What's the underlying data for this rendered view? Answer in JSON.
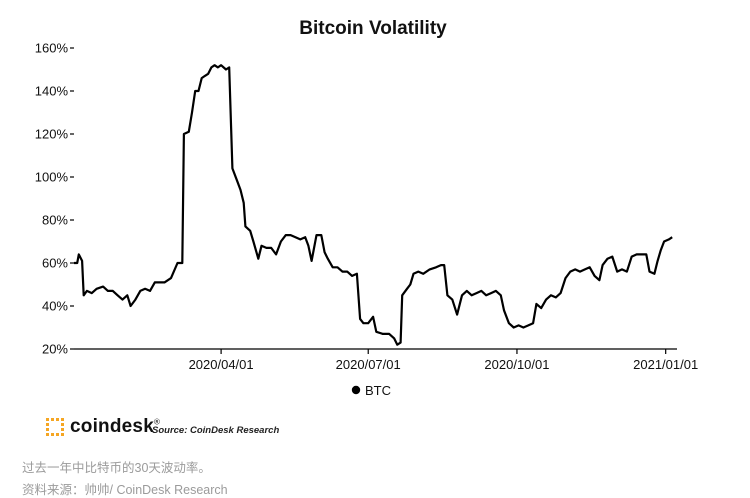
{
  "chart_data": {
    "type": "line",
    "title": "Bitcoin Volatility",
    "xlabel": "",
    "ylabel": "",
    "x_ticks": [
      "2020/04/01",
      "2020/07/01",
      "2020/10/01",
      "2021/01/01"
    ],
    "y_ticks": [
      "20%",
      "40%",
      "60%",
      "80%",
      "100%",
      "120%",
      "140%",
      "160%"
    ],
    "xlim": [
      "2020-01-01",
      "2021-01-08"
    ],
    "ylim": [
      20,
      160
    ],
    "grid": false,
    "legend": "bottom-center",
    "series": [
      {
        "name": "BTC",
        "color": "#000000",
        "points": [
          [
            "2020-01-01",
            60
          ],
          [
            "2020-01-03",
            60
          ],
          [
            "2020-01-04",
            64
          ],
          [
            "2020-01-06",
            61
          ],
          [
            "2020-01-07",
            45
          ],
          [
            "2020-01-09",
            47
          ],
          [
            "2020-01-12",
            46
          ],
          [
            "2020-01-15",
            48
          ],
          [
            "2020-01-19",
            49
          ],
          [
            "2020-01-22",
            47
          ],
          [
            "2020-01-25",
            47
          ],
          [
            "2020-01-28",
            45
          ],
          [
            "2020-01-31",
            43
          ],
          [
            "2020-02-03",
            45
          ],
          [
            "2020-02-05",
            40
          ],
          [
            "2020-02-08",
            43
          ],
          [
            "2020-02-11",
            47
          ],
          [
            "2020-02-14",
            48
          ],
          [
            "2020-02-17",
            47
          ],
          [
            "2020-02-20",
            51
          ],
          [
            "2020-02-23",
            51
          ],
          [
            "2020-02-26",
            51
          ],
          [
            "2020-03-01",
            53
          ],
          [
            "2020-03-05",
            60
          ],
          [
            "2020-03-08",
            60
          ],
          [
            "2020-03-09",
            120
          ],
          [
            "2020-03-12",
            121
          ],
          [
            "2020-03-14",
            130
          ],
          [
            "2020-03-16",
            140
          ],
          [
            "2020-03-18",
            140
          ],
          [
            "2020-03-20",
            146
          ],
          [
            "2020-03-22",
            147
          ],
          [
            "2020-03-24",
            148
          ],
          [
            "2020-03-26",
            151
          ],
          [
            "2020-03-28",
            152
          ],
          [
            "2020-03-30",
            151
          ],
          [
            "2020-04-01",
            152
          ],
          [
            "2020-04-04",
            150
          ],
          [
            "2020-04-06",
            151
          ],
          [
            "2020-04-08",
            104
          ],
          [
            "2020-04-11",
            98
          ],
          [
            "2020-04-13",
            94
          ],
          [
            "2020-04-15",
            88
          ],
          [
            "2020-04-16",
            77
          ],
          [
            "2020-04-19",
            75
          ],
          [
            "2020-04-21",
            70
          ],
          [
            "2020-04-24",
            62
          ],
          [
            "2020-04-26",
            68
          ],
          [
            "2020-04-29",
            67
          ],
          [
            "2020-05-02",
            67
          ],
          [
            "2020-05-05",
            64
          ],
          [
            "2020-05-08",
            70
          ],
          [
            "2020-05-11",
            73
          ],
          [
            "2020-05-14",
            73
          ],
          [
            "2020-05-17",
            72
          ],
          [
            "2020-05-20",
            71
          ],
          [
            "2020-05-23",
            72
          ],
          [
            "2020-05-25",
            68
          ],
          [
            "2020-05-27",
            61
          ],
          [
            "2020-05-30",
            73
          ],
          [
            "2020-06-02",
            73
          ],
          [
            "2020-06-04",
            65
          ],
          [
            "2020-06-06",
            62
          ],
          [
            "2020-06-09",
            58
          ],
          [
            "2020-06-12",
            58
          ],
          [
            "2020-06-15",
            56
          ],
          [
            "2020-06-18",
            56
          ],
          [
            "2020-06-21",
            54
          ],
          [
            "2020-06-24",
            55
          ],
          [
            "2020-06-26",
            34
          ],
          [
            "2020-06-28",
            32
          ],
          [
            "2020-07-01",
            32
          ],
          [
            "2020-07-04",
            35
          ],
          [
            "2020-07-06",
            28
          ],
          [
            "2020-07-10",
            27
          ],
          [
            "2020-07-14",
            27
          ],
          [
            "2020-07-17",
            25
          ],
          [
            "2020-07-19",
            22
          ],
          [
            "2020-07-21",
            23
          ],
          [
            "2020-07-22",
            45
          ],
          [
            "2020-07-25",
            48
          ],
          [
            "2020-07-27",
            50
          ],
          [
            "2020-07-29",
            55
          ],
          [
            "2020-08-01",
            56
          ],
          [
            "2020-08-04",
            55
          ],
          [
            "2020-08-08",
            57
          ],
          [
            "2020-08-12",
            58
          ],
          [
            "2020-08-15",
            59
          ],
          [
            "2020-08-17",
            59
          ],
          [
            "2020-08-19",
            45
          ],
          [
            "2020-08-22",
            43
          ],
          [
            "2020-08-25",
            36
          ],
          [
            "2020-08-28",
            45
          ],
          [
            "2020-08-31",
            47
          ],
          [
            "2020-09-03",
            45
          ],
          [
            "2020-09-06",
            46
          ],
          [
            "2020-09-09",
            47
          ],
          [
            "2020-09-12",
            45
          ],
          [
            "2020-09-15",
            46
          ],
          [
            "2020-09-18",
            47
          ],
          [
            "2020-09-21",
            45
          ],
          [
            "2020-09-23",
            38
          ],
          [
            "2020-09-26",
            32
          ],
          [
            "2020-09-29",
            30
          ],
          [
            "2020-10-02",
            31
          ],
          [
            "2020-10-05",
            30
          ],
          [
            "2020-10-08",
            31
          ],
          [
            "2020-10-11",
            32
          ],
          [
            "2020-10-13",
            41
          ],
          [
            "2020-10-16",
            39
          ],
          [
            "2020-10-19",
            43
          ],
          [
            "2020-10-22",
            45
          ],
          [
            "2020-10-25",
            44
          ],
          [
            "2020-10-28",
            46
          ],
          [
            "2020-10-31",
            53
          ],
          [
            "2020-11-03",
            56
          ],
          [
            "2020-11-06",
            57
          ],
          [
            "2020-11-09",
            56
          ],
          [
            "2020-11-12",
            57
          ],
          [
            "2020-11-15",
            58
          ],
          [
            "2020-11-18",
            54
          ],
          [
            "2020-11-21",
            52
          ],
          [
            "2020-11-23",
            59
          ],
          [
            "2020-11-26",
            62
          ],
          [
            "2020-11-29",
            63
          ],
          [
            "2020-12-02",
            56
          ],
          [
            "2020-12-05",
            57
          ],
          [
            "2020-12-08",
            56
          ],
          [
            "2020-12-11",
            63
          ],
          [
            "2020-12-14",
            64
          ],
          [
            "2020-12-17",
            64
          ],
          [
            "2020-12-20",
            64
          ],
          [
            "2020-12-22",
            56
          ],
          [
            "2020-12-25",
            55
          ],
          [
            "2020-12-27",
            61
          ],
          [
            "2020-12-29",
            66
          ],
          [
            "2020-12-31",
            70
          ],
          [
            "2021-01-03",
            71
          ],
          [
            "2021-01-05",
            72
          ]
        ]
      }
    ]
  },
  "brand": {
    "name": "coindesk",
    "reg": "®",
    "accent": "#f5a623"
  },
  "source": "Source: CoinDesk Research",
  "caption": {
    "line1": "过去一年中比特币的30天波动率。",
    "line2": "资料来源：帅帅/ CoinDesk Research"
  }
}
